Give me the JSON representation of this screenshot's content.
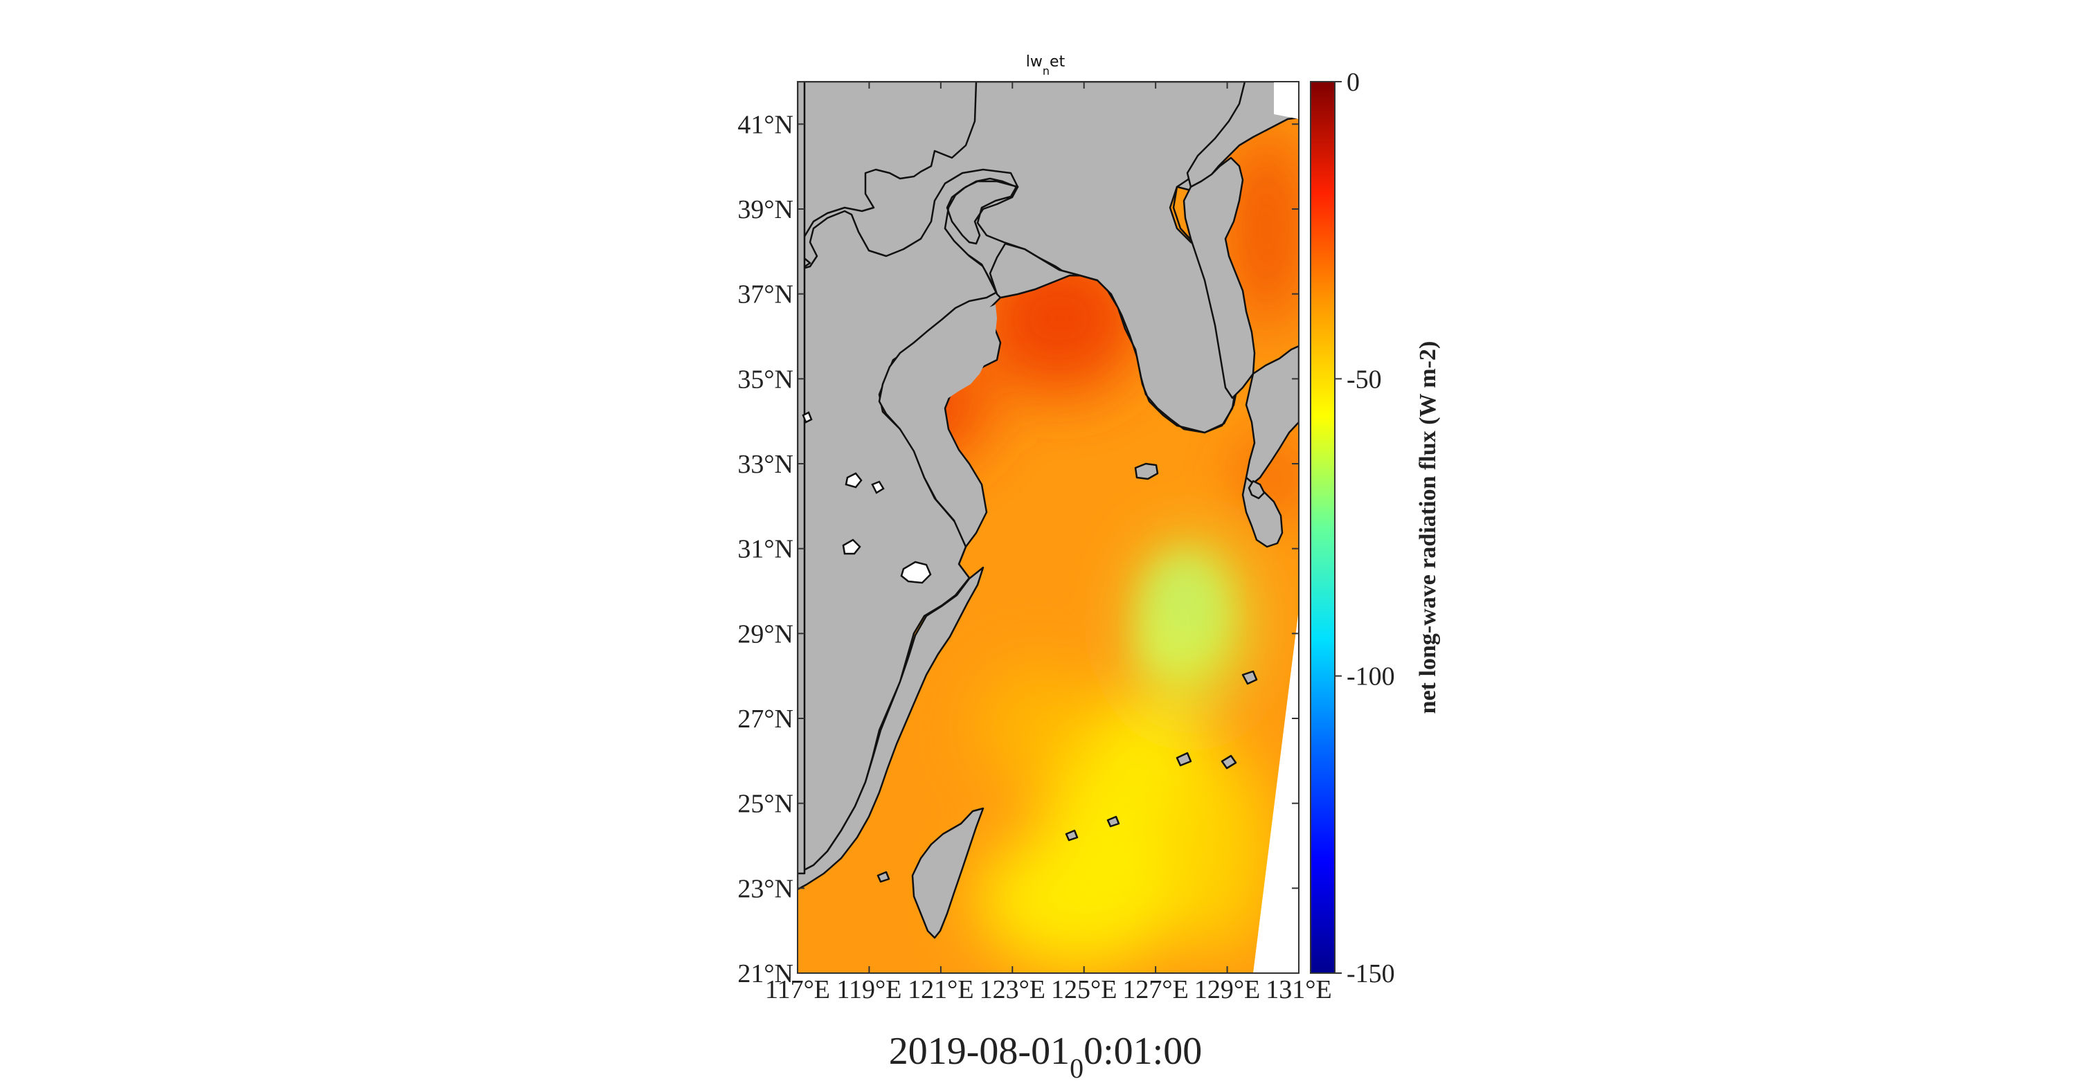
{
  "figure": {
    "title_main": "lw",
    "title_sub": "n",
    "title_tail": "et",
    "timestamp_main": "2019-08-01",
    "timestamp_sub": "0",
    "timestamp_tail": "0:01:00"
  },
  "map": {
    "lon_range": [
      117,
      131
    ],
    "lat_range": [
      21,
      42
    ],
    "lat_ticks": [
      {
        "value": 21,
        "label": "21°N"
      },
      {
        "value": 23,
        "label": "23°N"
      },
      {
        "value": 25,
        "label": "25°N"
      },
      {
        "value": 27,
        "label": "27°N"
      },
      {
        "value": 29,
        "label": "29°N"
      },
      {
        "value": 31,
        "label": "31°N"
      },
      {
        "value": 33,
        "label": "33°N"
      },
      {
        "value": 35,
        "label": "35°N"
      },
      {
        "value": 37,
        "label": "37°N"
      },
      {
        "value": 39,
        "label": "39°N"
      },
      {
        "value": 41,
        "label": "41°N"
      }
    ],
    "lon_ticks": [
      {
        "value": 117,
        "label": "117°E"
      },
      {
        "value": 119,
        "label": "119°E"
      },
      {
        "value": 121,
        "label": "121°E"
      },
      {
        "value": 123,
        "label": "123°E"
      },
      {
        "value": 125,
        "label": "125°E"
      },
      {
        "value": 127,
        "label": "127°E"
      },
      {
        "value": 129,
        "label": "129°E"
      },
      {
        "value": 131,
        "label": "131°E"
      }
    ],
    "land_color": "#b4b4b4"
  },
  "colorbar": {
    "title": "net long-wave radiation flux (W m-2)",
    "range": [
      -150,
      0
    ],
    "ticks": [
      {
        "value": 0,
        "label": "0"
      },
      {
        "value": -50,
        "label": "-50"
      },
      {
        "value": -100,
        "label": "-100"
      },
      {
        "value": -150,
        "label": "-150"
      }
    ],
    "colormap": [
      "#00008f",
      "#0000ff",
      "#0080ff",
      "#00ffff",
      "#80ff80",
      "#ffff00",
      "#ff8000",
      "#ff0000",
      "#800000"
    ]
  }
}
